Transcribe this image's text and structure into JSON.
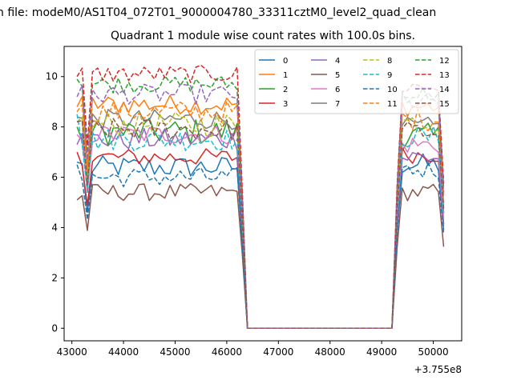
{
  "chart_data": {
    "type": "line",
    "suptitle": "n file: modeM0/AS1T04_072T01_9000004780_33311cztM0_level2_quad_clean",
    "title": "Quadrant 1 module wise count rates with 100.0s bins.",
    "xlabel": "",
    "ylabel": "",
    "x_offset_label": "+3.755e8",
    "xlim": [
      42850,
      50550
    ],
    "ylim": [
      -0.5,
      11.2
    ],
    "x_ticks": [
      43000,
      44000,
      45000,
      46000,
      47000,
      48000,
      49000,
      50000
    ],
    "x_tick_labels": [
      "43000",
      "44000",
      "45000",
      "46000",
      "47000",
      "48000",
      "49000",
      "50000"
    ],
    "y_ticks": [
      0,
      2,
      4,
      6,
      8,
      10
    ],
    "y_tick_labels": [
      "0",
      "2",
      "4",
      "6",
      "8",
      "10"
    ],
    "grid": false,
    "legend_position": "top-right",
    "legend_columns": 4,
    "x_segments": {
      "first": {
        "start": 43100,
        "step": 100,
        "count": 33
      },
      "gap": [
        46400,
        49200
      ],
      "second": {
        "start": 49200,
        "step": 100,
        "count": 11
      }
    },
    "series": [
      {
        "name": "0",
        "color": "#1f77b4",
        "style": "solid",
        "first_level": 6.4,
        "first_amp": 0.45,
        "start_value": 6.6,
        "second_level": 6.5
      },
      {
        "name": "1",
        "color": "#ff7f0e",
        "style": "solid",
        "first_level": 8.9,
        "first_amp": 0.4,
        "start_value": 8.8,
        "second_level": 8.8
      },
      {
        "name": "2",
        "color": "#2ca02c",
        "style": "solid",
        "first_level": 7.8,
        "first_amp": 0.55,
        "start_value": 8.0,
        "second_level": 7.6
      },
      {
        "name": "3",
        "color": "#d62728",
        "style": "solid",
        "first_level": 6.8,
        "first_amp": 0.35,
        "start_value": 7.0,
        "second_level": 6.9
      },
      {
        "name": "4",
        "color": "#9467bd",
        "style": "solid",
        "first_level": 7.5,
        "first_amp": 0.45,
        "start_value": 7.3,
        "second_level": 6.8
      },
      {
        "name": "5",
        "color": "#8c564b",
        "style": "solid",
        "first_level": 5.4,
        "first_amp": 0.35,
        "start_value": 5.1,
        "second_level": 5.4
      },
      {
        "name": "6",
        "color": "#e377c2",
        "style": "solid",
        "first_level": 7.7,
        "first_amp": 0.4,
        "start_value": 7.7,
        "second_level": 7.3
      },
      {
        "name": "7",
        "color": "#7f7f7f",
        "style": "solid",
        "first_level": 8.3,
        "first_amp": 0.4,
        "start_value": 8.4,
        "second_level": 8.0
      },
      {
        "name": "8",
        "color": "#bcbd22",
        "style": "dashed",
        "first_level": 8.1,
        "first_amp": 0.5,
        "start_value": 8.2,
        "second_level": 8.2
      },
      {
        "name": "9",
        "color": "#17becf",
        "style": "dashed",
        "first_level": 7.5,
        "first_amp": 0.45,
        "start_value": 8.5,
        "second_level": 7.6
      },
      {
        "name": "10",
        "color": "#1f77b4",
        "style": "dashed",
        "first_level": 6.0,
        "first_amp": 0.4,
        "start_value": 6.5,
        "second_level": 6.3
      },
      {
        "name": "11",
        "color": "#ff7f0e",
        "style": "dashed",
        "first_level": 8.6,
        "first_amp": 0.45,
        "start_value": 8.6,
        "second_level": 8.3
      },
      {
        "name": "12",
        "color": "#2ca02c",
        "style": "dashed",
        "first_level": 9.7,
        "first_amp": 0.35,
        "start_value": 9.9,
        "second_level": 9.3
      },
      {
        "name": "13",
        "color": "#d62728",
        "style": "dashed",
        "first_level": 10.1,
        "first_amp": 0.35,
        "start_value": 10.0,
        "second_level": 9.6
      },
      {
        "name": "14",
        "color": "#9467bd",
        "style": "dashed",
        "first_level": 9.3,
        "first_amp": 0.4,
        "start_value": 9.2,
        "second_level": 9.0
      },
      {
        "name": "15",
        "color": "#8c564b",
        "style": "dashed",
        "first_level": 7.9,
        "first_amp": 0.45,
        "start_value": 8.2,
        "second_level": 7.8
      }
    ]
  }
}
